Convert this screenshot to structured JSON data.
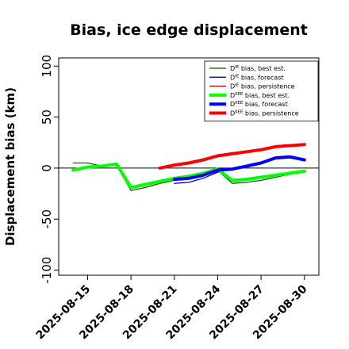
{
  "chart_data": {
    "type": "line",
    "title": "Bias, ice edge displacement",
    "xlabel": "",
    "ylabel": "Displacement bias (km)",
    "ylim": [
      -105,
      108
    ],
    "yticks": [
      -100,
      -50,
      0,
      50,
      100
    ],
    "xlim": [
      "2025-08-13",
      "2025-08-31"
    ],
    "xticks": [
      "2025-08-15",
      "2025-08-18",
      "2025-08-21",
      "2025-08-24",
      "2025-08-27",
      "2025-08-30"
    ],
    "highlighted_xtick": "2025-08-21",
    "highlight_color": "#228b22",
    "reference_line": {
      "y": 0,
      "color": "#000000"
    },
    "legend_position": "top-right",
    "series": [
      {
        "name": "D^IE bias, best est.",
        "color": "#006400",
        "thick": false,
        "x": [
          "2025-08-14",
          "2025-08-15",
          "2025-08-16",
          "2025-08-17",
          "2025-08-18",
          "2025-08-19",
          "2025-08-20",
          "2025-08-21",
          "2025-08-22",
          "2025-08-23",
          "2025-08-24",
          "2025-08-25",
          "2025-08-26",
          "2025-08-27",
          "2025-08-28",
          "2025-08-29",
          "2025-08-30"
        ],
        "y": [
          5,
          5,
          2,
          3,
          -22,
          -19,
          -15,
          -12,
          -10,
          -7,
          -2,
          -15,
          -14,
          -12,
          -9,
          -6,
          -4
        ]
      },
      {
        "name": "D^IE bias, forecast",
        "color": "#0000cd",
        "thick": false,
        "x": [
          "2025-08-21",
          "2025-08-22",
          "2025-08-23",
          "2025-08-24",
          "2025-08-25",
          "2025-08-26",
          "2025-08-27",
          "2025-08-28",
          "2025-08-29",
          "2025-08-30"
        ],
        "y": [
          -15,
          -14,
          -10,
          -4,
          -1,
          2,
          5,
          9,
          10,
          8
        ]
      },
      {
        "name": "D^IE bias, persistence",
        "color": "#8b0000",
        "thick": false,
        "x": [
          "2025-08-20",
          "2025-08-21",
          "2025-08-22",
          "2025-08-23",
          "2025-08-24",
          "2025-08-25",
          "2025-08-26",
          "2025-08-27",
          "2025-08-28",
          "2025-08-29",
          "2025-08-30"
        ],
        "y": [
          0,
          2,
          5,
          8,
          12,
          14,
          16,
          18,
          21,
          22,
          23
        ]
      },
      {
        "name": "D^IIEE bias, best est.",
        "color": "#00ff00",
        "thick": true,
        "x": [
          "2025-08-14",
          "2025-08-15",
          "2025-08-16",
          "2025-08-17",
          "2025-08-18",
          "2025-08-19",
          "2025-08-20",
          "2025-08-21",
          "2025-08-22",
          "2025-08-23",
          "2025-08-24",
          "2025-08-25",
          "2025-08-26",
          "2025-08-27",
          "2025-08-28",
          "2025-08-29",
          "2025-08-30"
        ],
        "y": [
          -2,
          1,
          2,
          4,
          -19,
          -16,
          -13,
          -10,
          -8,
          -5,
          -1,
          -12,
          -11,
          -9,
          -7,
          -5,
          -3
        ]
      },
      {
        "name": "D^IIEE bias, forecast",
        "color": "#0000ff",
        "thick": true,
        "x": [
          "2025-08-21",
          "2025-08-22",
          "2025-08-23",
          "2025-08-24",
          "2025-08-25",
          "2025-08-26",
          "2025-08-27",
          "2025-08-28",
          "2025-08-29",
          "2025-08-30"
        ],
        "y": [
          -11,
          -10,
          -7,
          -2,
          -1,
          2,
          5,
          10,
          11,
          8
        ]
      },
      {
        "name": "D^IIEE bias, persistence",
        "color": "#ff0000",
        "thick": true,
        "x": [
          "2025-08-20",
          "2025-08-21",
          "2025-08-22",
          "2025-08-23",
          "2025-08-24",
          "2025-08-25",
          "2025-08-26",
          "2025-08-27",
          "2025-08-28",
          "2025-08-29",
          "2025-08-30"
        ],
        "y": [
          0,
          3,
          5,
          8,
          12,
          14,
          16,
          18,
          21,
          22,
          23
        ]
      }
    ],
    "legend_labels": [
      {
        "base": "D",
        "sup": "IE",
        "rest": " bias, best est."
      },
      {
        "base": "D",
        "sup": "IE",
        "rest": " bias, forecast"
      },
      {
        "base": "D",
        "sup": "IE",
        "rest": " bias, persistence"
      },
      {
        "base": "D",
        "sup": "IIEE",
        "rest": " bias, best est."
      },
      {
        "base": "D",
        "sup": "IIEE",
        "rest": " bias, forecast"
      },
      {
        "base": "D",
        "sup": "IIEE",
        "rest": " bias, persistence"
      }
    ]
  }
}
